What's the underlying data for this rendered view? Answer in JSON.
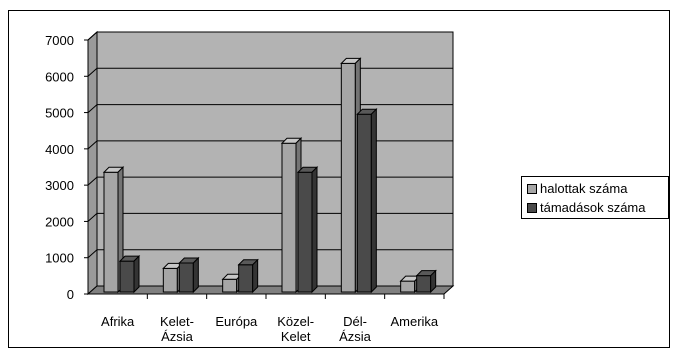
{
  "chart_data": {
    "type": "bar",
    "style": "3d-clustered-column",
    "categories": [
      [
        "Afrika"
      ],
      [
        "Kelet-",
        "Ázsia"
      ],
      [
        "Európa"
      ],
      [
        "Közel-",
        "Kelet"
      ],
      [
        "Dél-",
        "Ázsia"
      ],
      [
        "Amerika"
      ]
    ],
    "series": [
      {
        "name": "halottak száma",
        "values": [
          3300,
          650,
          350,
          4100,
          6300,
          300
        ],
        "color": "#a6a6a6"
      },
      {
        "name": "támadások száma",
        "values": [
          850,
          800,
          750,
          3300,
          4900,
          450
        ],
        "color": "#4a4a4a"
      }
    ],
    "ylim": [
      0,
      7000
    ],
    "yticks": [
      "0",
      "1000",
      "2000",
      "3000",
      "4000",
      "5000",
      "6000",
      "7000"
    ],
    "grid": true,
    "legend_position": "right",
    "wall_color": "#b3b3b3"
  }
}
